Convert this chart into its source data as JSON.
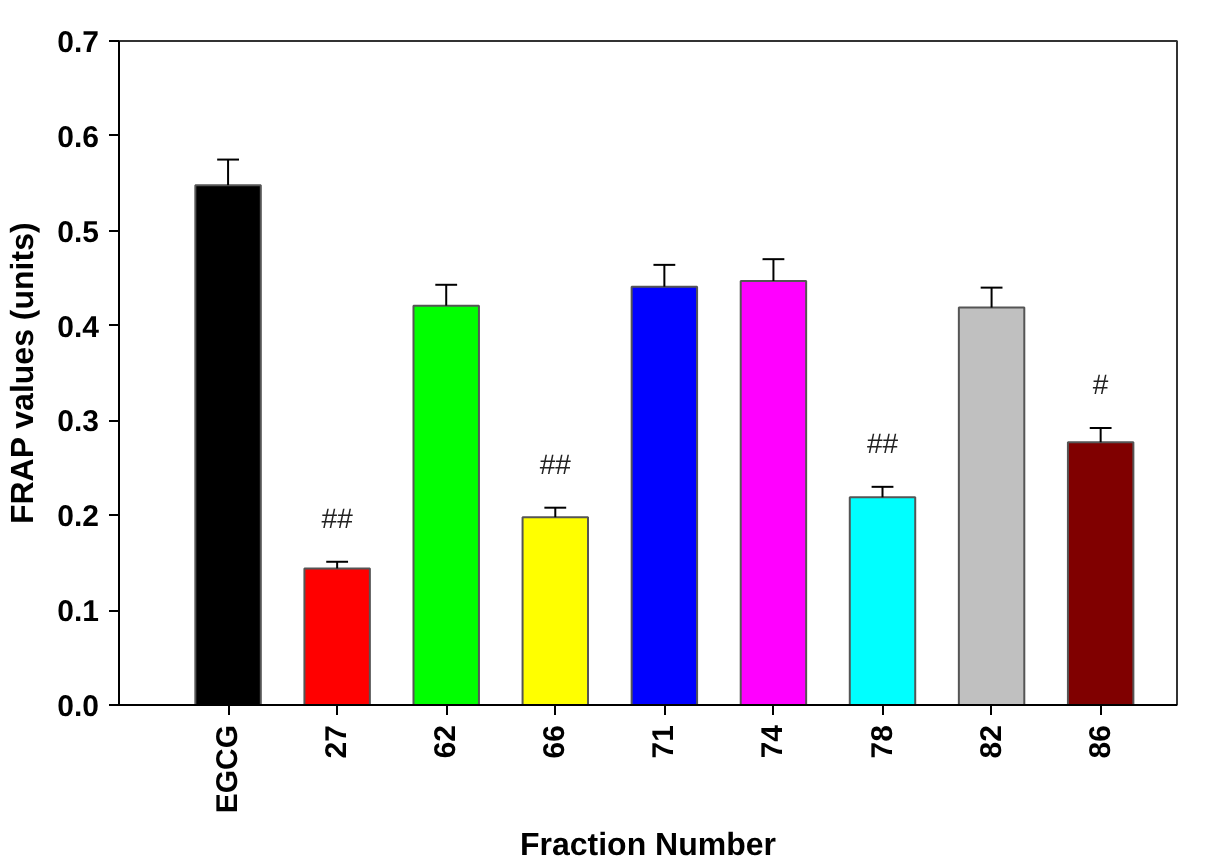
{
  "chart_data": {
    "type": "bar",
    "xlabel": "Fraction Number",
    "ylabel": "FRAP values (units)",
    "categories": [
      "EGCG",
      "27",
      "62",
      "66",
      "71",
      "74",
      "78",
      "82",
      "86"
    ],
    "values": [
      0.548,
      0.144,
      0.421,
      0.198,
      0.441,
      0.447,
      0.219,
      0.419,
      0.277
    ],
    "colors": [
      "#000000",
      "#ff0000",
      "#00ff00",
      "#ffff00",
      "#0000ff",
      "#ff00ff",
      "#00ffff",
      "#c0c0c0",
      "#800000"
    ],
    "errors": [
      [
        0.548,
        0.575
      ],
      [
        0.144,
        0.151
      ],
      [
        0.421,
        0.443
      ],
      [
        0.198,
        0.208
      ],
      [
        0.441,
        0.464
      ],
      [
        0.447,
        0.47
      ],
      [
        0.219,
        0.23
      ],
      [
        0.419,
        0.44
      ],
      [
        0.277,
        0.292
      ]
    ],
    "ylim": [
      0,
      0.7
    ],
    "yticks": [
      {
        "value": 0,
        "label": "0.0"
      },
      0.1,
      0.2,
      0.3,
      0.4,
      0.5,
      0.6,
      0.7
    ],
    "grid": false,
    "annotations": [
      {
        "text": "##",
        "x": "27",
        "y": 0.144
      },
      {
        "text": "##",
        "x": "66",
        "y": 0.198
      },
      {
        "text": "##",
        "x": "78",
        "y": 0.219
      },
      {
        "text": "#",
        "x": "86",
        "y": 0.277
      }
    ]
  }
}
